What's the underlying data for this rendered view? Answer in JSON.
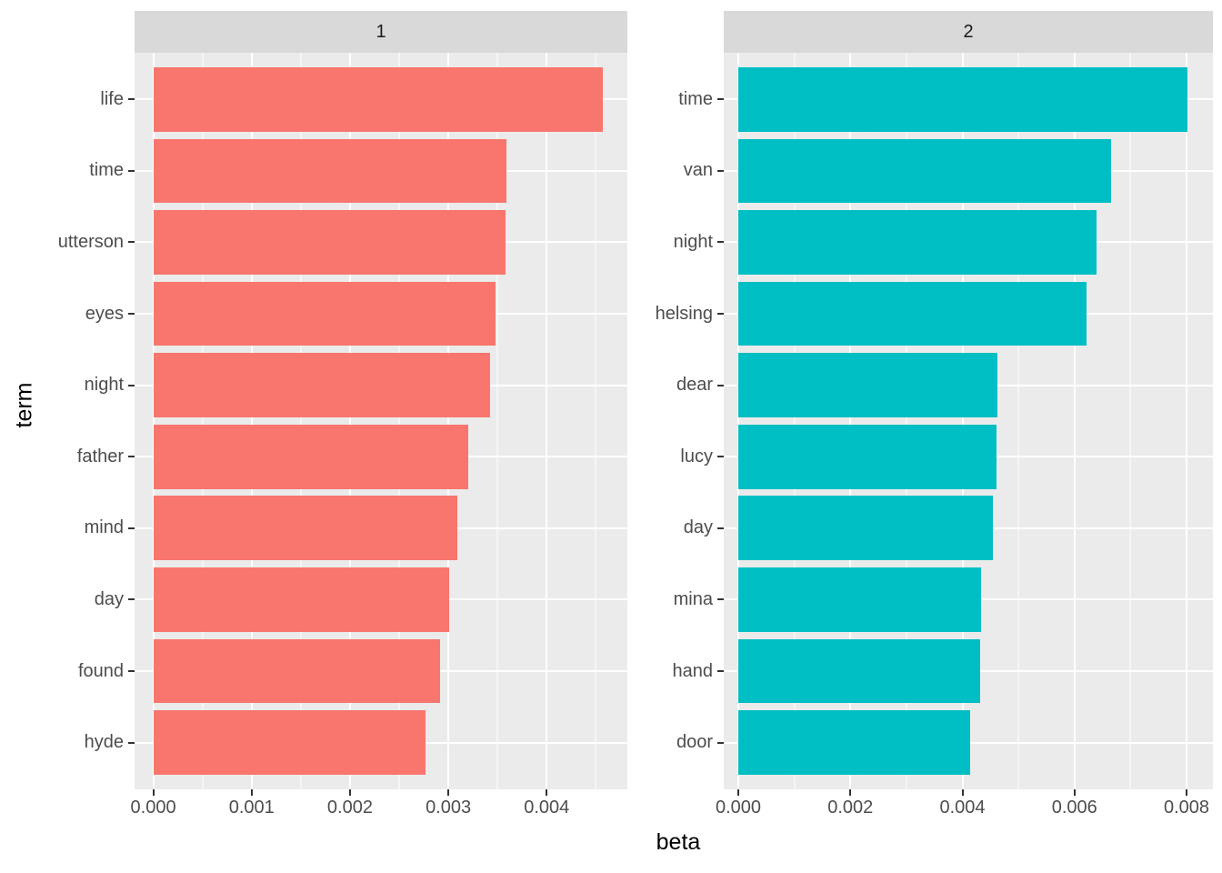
{
  "figure": {
    "x_axis_title": "beta",
    "y_axis_title": "term",
    "colors": {
      "facet_1_bar": "#F8766D",
      "facet_2_bar": "#00BFC4",
      "panel_background": "#EBEBEB",
      "strip_background": "#D9D9D9",
      "gridline": "#FFFFFF",
      "tick_mark": "#333333",
      "tick_label": "#4D4D4D",
      "title_text": "#000000"
    }
  },
  "chart_data": [
    {
      "type": "bar",
      "orientation": "horizontal",
      "facet_label": "1",
      "bar_color": "#F8766D",
      "categories": [
        "life",
        "time",
        "utterson",
        "eyes",
        "night",
        "father",
        "mind",
        "day",
        "found",
        "hyde"
      ],
      "values": [
        0.00457,
        0.00359,
        0.00358,
        0.00348,
        0.00342,
        0.0032,
        0.00309,
        0.00301,
        0.00292,
        0.00277
      ],
      "xlabel": "beta",
      "ylabel": "term",
      "xlim": [
        -0.00019,
        0.00482
      ],
      "x_major_ticks": [
        0.0,
        0.001,
        0.002,
        0.003,
        0.004
      ],
      "x_tick_labels": [
        "0.000",
        "0.001",
        "0.002",
        "0.003",
        "0.004"
      ],
      "x_minor_ticks": [
        0.0005,
        0.0015,
        0.0025,
        0.0035,
        0.0045
      ],
      "grid": "on",
      "legend": "none"
    },
    {
      "type": "bar",
      "orientation": "horizontal",
      "facet_label": "2",
      "bar_color": "#00BFC4",
      "categories": [
        "time",
        "van",
        "night",
        "helsing",
        "dear",
        "lucy",
        "day",
        "mina",
        "hand",
        "door"
      ],
      "values": [
        0.00802,
        0.00665,
        0.00639,
        0.00621,
        0.00462,
        0.00461,
        0.00454,
        0.00433,
        0.00432,
        0.00413
      ],
      "xlabel": "beta",
      "ylabel": "term",
      "xlim": [
        -0.00026,
        0.00847
      ],
      "x_major_ticks": [
        0.0,
        0.002,
        0.004,
        0.006,
        0.008
      ],
      "x_tick_labels": [
        "0.000",
        "0.002",
        "0.004",
        "0.006",
        "0.008"
      ],
      "x_minor_ticks": [
        0.001,
        0.003,
        0.005,
        0.007
      ],
      "grid": "on",
      "legend": "none"
    }
  ]
}
